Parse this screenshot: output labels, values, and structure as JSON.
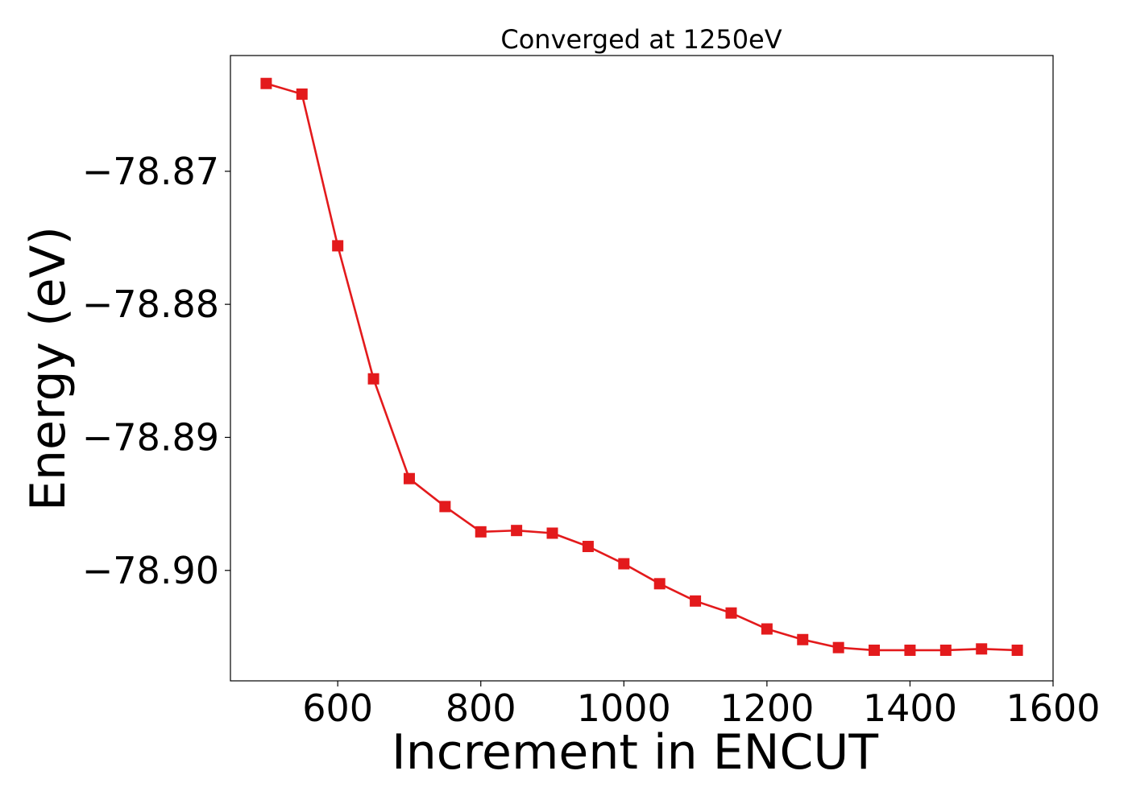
{
  "chart_data": {
    "type": "line",
    "title": "Converged at 1250eV",
    "xlabel": "Increment in ENCUT",
    "ylabel": "Energy (eV)",
    "xlim": [
      450,
      1600
    ],
    "ylim": [
      -78.9083,
      -78.8613
    ],
    "xticks": [
      600,
      800,
      1000,
      1200,
      1400,
      1600
    ],
    "xtick_labels": [
      "600",
      "800",
      "1000",
      "1200",
      "1400",
      "1600"
    ],
    "yticks": [
      -78.87,
      -78.88,
      -78.89,
      -78.9
    ],
    "ytick_labels": [
      "−78.87",
      "−78.88",
      "−78.89",
      "−78.90"
    ],
    "grid": false,
    "marker": "square",
    "color": "#e31a1c",
    "series": [
      {
        "x": [
          500,
          550,
          600,
          650,
          700,
          750,
          800,
          850,
          900,
          950,
          1000,
          1050,
          1100,
          1150,
          1200,
          1250,
          1300,
          1350,
          1400,
          1450,
          1500,
          1550
        ],
        "y": [
          -78.8634,
          -78.8642,
          -78.8756,
          -78.8856,
          -78.8931,
          -78.8952,
          -78.8971,
          -78.897,
          -78.8972,
          -78.8982,
          -78.8995,
          -78.901,
          -78.9023,
          -78.9032,
          -78.9044,
          -78.9052,
          -78.9058,
          -78.906,
          -78.906,
          -78.906,
          -78.9059,
          -78.906
        ]
      }
    ]
  }
}
